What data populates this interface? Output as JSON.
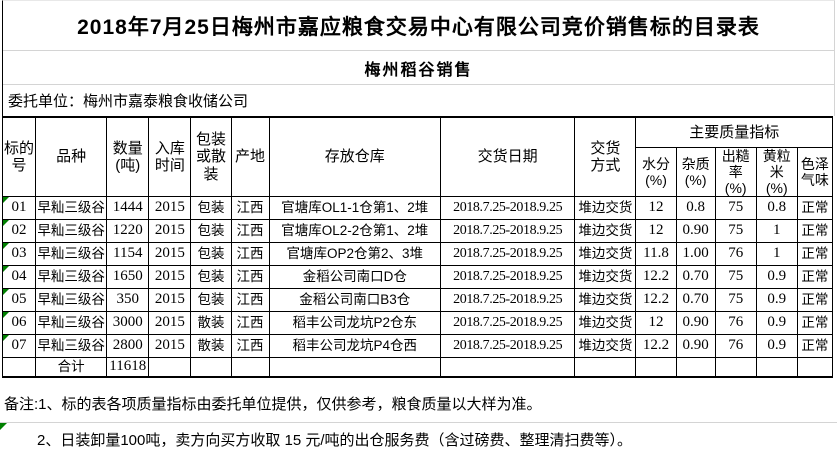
{
  "page": {
    "title": "2018年7月25日梅州市嘉应粮食交易中心有限公司竞价销售标的目录表",
    "subtitle": "梅州稻谷销售",
    "consignor": "委托单位：梅州市嘉泰粮食收储公司"
  },
  "table": {
    "headers": {
      "lot": "标的\n号",
      "variety": "品种",
      "quantity": "数量\n(吨)",
      "year": "入库\n时间",
      "packaging": "包装\n或散\n装",
      "origin": "产地",
      "warehouse": "存放仓库",
      "delivery_date": "交货日期",
      "delivery_method": "交货\n方式",
      "quality_group": "主要质量指标",
      "moisture": "水分\n(%)",
      "impurity": "杂质\n(%)",
      "brown_rate": "出糙\n率\n(%)",
      "yellow_rice": "黄粒\n米\n(%)",
      "color_smell": "色泽\n气味"
    },
    "rows": [
      {
        "lot": "01",
        "variety": "早籼三级谷",
        "quantity": "1444",
        "year": "2015",
        "packaging": "包装",
        "origin": "江西",
        "warehouse": "官塘库OL1-1仓第1、2堆",
        "delivery_date": "2018.7.25-2018.9.25",
        "delivery_method": "堆边交货",
        "moisture": "12",
        "impurity": "0.8",
        "brown_rate": "75",
        "yellow_rice": "0.8",
        "color_smell": "正常"
      },
      {
        "lot": "02",
        "variety": "早籼三级谷",
        "quantity": "1220",
        "year": "2015",
        "packaging": "包装",
        "origin": "江西",
        "warehouse": "官塘库OL2-2仓第1、2堆",
        "delivery_date": "2018.7.25-2018.9.25",
        "delivery_method": "堆边交货",
        "moisture": "12",
        "impurity": "0.90",
        "brown_rate": "75",
        "yellow_rice": "1",
        "color_smell": "正常"
      },
      {
        "lot": "03",
        "variety": "早籼三级谷",
        "quantity": "1154",
        "year": "2015",
        "packaging": "包装",
        "origin": "江西",
        "warehouse": "官塘库OP2仓第2、3堆",
        "delivery_date": "2018.7.25-2018.9.25",
        "delivery_method": "堆边交货",
        "moisture": "11.8",
        "impurity": "1.00",
        "brown_rate": "76",
        "yellow_rice": "1",
        "color_smell": "正常"
      },
      {
        "lot": "04",
        "variety": "早籼三级谷",
        "quantity": "1650",
        "year": "2015",
        "packaging": "包装",
        "origin": "江西",
        "warehouse": "金稻公司南口D仓",
        "delivery_date": "2018.7.25-2018.9.25",
        "delivery_method": "堆边交货",
        "moisture": "12.2",
        "impurity": "0.70",
        "brown_rate": "75",
        "yellow_rice": "0.9",
        "color_smell": "正常"
      },
      {
        "lot": "05",
        "variety": "早籼三级谷",
        "quantity": "350",
        "year": "2015",
        "packaging": "包装",
        "origin": "江西",
        "warehouse": "金稻公司南口B3仓",
        "delivery_date": "2018.7.25-2018.9.25",
        "delivery_method": "堆边交货",
        "moisture": "12.2",
        "impurity": "0.70",
        "brown_rate": "75",
        "yellow_rice": "0.9",
        "color_smell": "正常"
      },
      {
        "lot": "06",
        "variety": "早籼三级谷",
        "quantity": "3000",
        "year": "2015",
        "packaging": "散装",
        "origin": "江西",
        "warehouse": "稻丰公司龙坑P2仓东",
        "delivery_date": "2018.7.25-2018.9.25",
        "delivery_method": "堆边交货",
        "moisture": "12",
        "impurity": "0.90",
        "brown_rate": "76",
        "yellow_rice": "0.9",
        "color_smell": "正常"
      },
      {
        "lot": "07",
        "variety": "早籼三级谷",
        "quantity": "2800",
        "year": "2015",
        "packaging": "散装",
        "origin": "江西",
        "warehouse": "稻丰公司龙坑P4仓西",
        "delivery_date": "2018.7.25-2018.9.25",
        "delivery_method": "堆边交货",
        "moisture": "12.2",
        "impurity": "0.90",
        "brown_rate": "76",
        "yellow_rice": "0.9",
        "color_smell": "正常"
      }
    ],
    "total": {
      "label": "合计",
      "quantity": "11618"
    }
  },
  "notes": {
    "line1": "备注:1、标的表各项质量指标由委托单位提供，仅供参考，粮食质量以大样为准。",
    "line2": "2、日装卸量100吨，卖方向买方收取 15 元/吨的出仓服务费（含过磅费、整理清扫费等）。"
  },
  "colors": {
    "border_dark": "#000000",
    "gridline_light": "#d4d4d4",
    "error_indicator_green": "#008000",
    "text": "#000000",
    "background": "#ffffff"
  }
}
